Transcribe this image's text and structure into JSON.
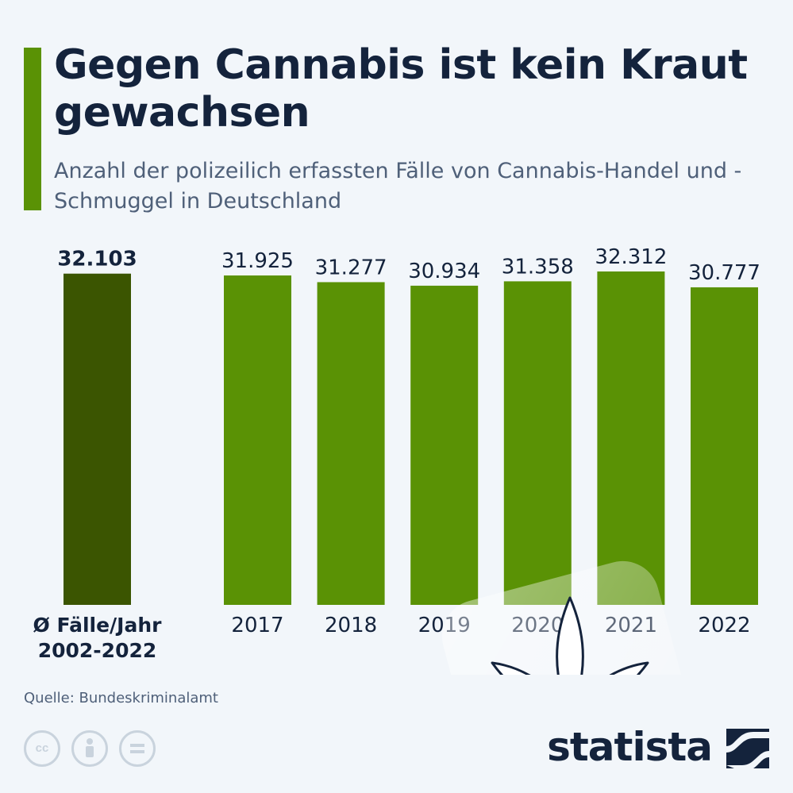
{
  "title": "Gegen Cannabis ist kein Kraut gewachsen",
  "subtitle": "Anzahl der polizeilich erfassten Fälle von Cannabis-Handel und -Schmuggel in Deutschland",
  "source": "Quelle: Bundeskriminalamt",
  "brand": "statista",
  "colors": {
    "accent": "#5a9205",
    "bar": "#5a9205",
    "average_bar": "#3b5501",
    "title": "#14233c",
    "subtitle": "#4f6079",
    "background": "#f2f6fa"
  },
  "icons": [
    "cc-icon",
    "attribution-icon",
    "no-derivatives-icon",
    "cannabis-leaf-icon",
    "statista-logo-icon"
  ],
  "chart_data": {
    "type": "bar",
    "title": "Gegen Cannabis ist kein Kraut gewachsen",
    "subtitle": "Anzahl der polizeilich erfassten Fälle von Cannabis-Handel und -Schmuggel in Deutschland",
    "xlabel": "",
    "ylabel": "",
    "ylim": [
      0,
      32312
    ],
    "grid": false,
    "average": {
      "label_line1": "Ø Fälle/Jahr",
      "label_line2": "2002-2022",
      "value": 32103,
      "value_label": "32.103"
    },
    "categories": [
      "2017",
      "2018",
      "2019",
      "2020",
      "2021",
      "2022"
    ],
    "values": [
      31925,
      31277,
      30934,
      31358,
      32312,
      30777
    ],
    "value_labels": [
      "31.925",
      "31.277",
      "30.934",
      "31.358",
      "32.312",
      "30.777"
    ]
  }
}
